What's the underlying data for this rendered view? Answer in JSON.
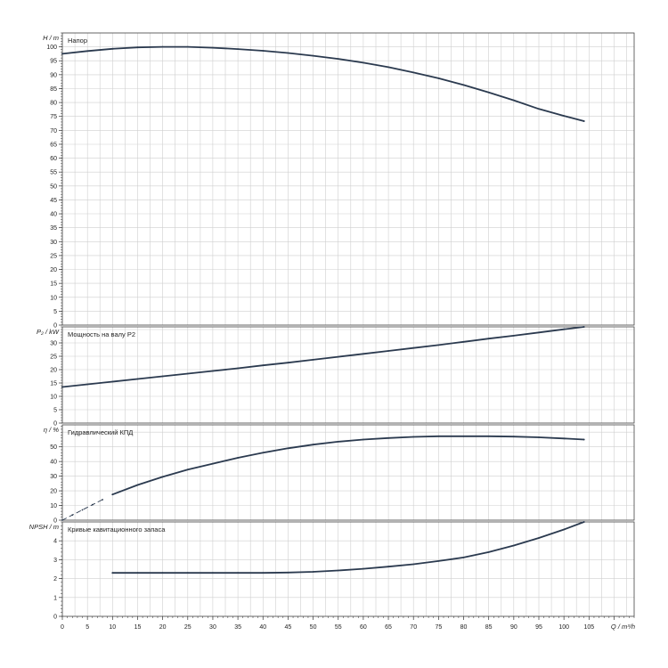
{
  "chart_data": [
    {
      "type": "line",
      "title": "Напор",
      "ylabel": "H / m",
      "xlabel": "Q / m³/h",
      "xlim": [
        0,
        114
      ],
      "ylim": [
        0,
        105
      ],
      "yticks": [
        0,
        5,
        10,
        15,
        20,
        25,
        30,
        35,
        40,
        45,
        50,
        55,
        60,
        65,
        70,
        75,
        80,
        85,
        90,
        95,
        100
      ],
      "grid": true,
      "series": [
        {
          "x": [
            0,
            5,
            10,
            15,
            20,
            25,
            30,
            35,
            40,
            45,
            50,
            55,
            60,
            65,
            70,
            75,
            80,
            85,
            90,
            95,
            100,
            104
          ],
          "y": [
            97.5,
            98.5,
            99.3,
            99.8,
            100,
            100,
            99.7,
            99.2,
            98.6,
            97.8,
            96.8,
            95.7,
            94.3,
            92.7,
            90.8,
            88.7,
            86.3,
            83.6,
            80.8,
            77.7,
            75.2,
            73.3
          ]
        }
      ]
    },
    {
      "type": "line",
      "title": "Мощность на валу P2",
      "ylabel": "P₂ / kW",
      "xlabel": "Q / m³/h",
      "xlim": [
        0,
        114
      ],
      "ylim": [
        0,
        36
      ],
      "yticks": [
        0,
        5,
        10,
        15,
        20,
        25,
        30
      ],
      "grid": true,
      "series": [
        {
          "x": [
            0,
            5,
            10,
            15,
            20,
            25,
            30,
            35,
            40,
            45,
            50,
            55,
            60,
            65,
            70,
            75,
            80,
            85,
            90,
            95,
            100,
            104
          ],
          "y": [
            13.5,
            14.5,
            15.5,
            16.5,
            17.5,
            18.5,
            19.5,
            20.5,
            21.6,
            22.6,
            23.7,
            24.8,
            25.9,
            27.0,
            28.1,
            29.2,
            30.4,
            31.6,
            32.7,
            33.9,
            35.1,
            36.0
          ]
        }
      ]
    },
    {
      "type": "line",
      "title": "Гидравлический КПД",
      "ylabel": "η / %",
      "xlabel": "Q / m³/h",
      "xlim": [
        0,
        114
      ],
      "ylim": [
        0,
        65
      ],
      "yticks": [
        0,
        10,
        20,
        30,
        40,
        50
      ],
      "grid": true,
      "series": [
        {
          "x": [
            0,
            2,
            4,
            6,
            8
          ],
          "y": [
            0,
            3.5,
            7,
            10.5,
            14
          ],
          "dashed": true
        },
        {
          "x": [
            10,
            15,
            20,
            25,
            30,
            35,
            40,
            45,
            50,
            55,
            60,
            65,
            70,
            75,
            80,
            85,
            90,
            95,
            100,
            104
          ],
          "y": [
            17.5,
            24,
            29.5,
            34.5,
            38.5,
            42.5,
            46,
            49,
            51.5,
            53.5,
            55,
            56,
            56.8,
            57.2,
            57.2,
            57.2,
            57,
            56.5,
            55.7,
            55
          ]
        }
      ]
    },
    {
      "type": "line",
      "title": "Кривые кавитационного запаса",
      "ylabel": "NPSH / m",
      "xlabel": "Q / m³/h",
      "xlim": [
        0,
        114
      ],
      "ylim": [
        0,
        5
      ],
      "yticks": [
        0,
        1,
        2,
        3,
        4
      ],
      "xticks": [
        0,
        5,
        10,
        15,
        20,
        25,
        30,
        35,
        40,
        45,
        50,
        55,
        60,
        65,
        70,
        75,
        80,
        85,
        90,
        95,
        100,
        105
      ],
      "grid": true,
      "series": [
        {
          "x": [
            10,
            15,
            20,
            25,
            30,
            35,
            40,
            45,
            50,
            55,
            60,
            65,
            70,
            75,
            80,
            85,
            90,
            95,
            100,
            104
          ],
          "y": [
            2.3,
            2.3,
            2.3,
            2.3,
            2.3,
            2.3,
            2.3,
            2.32,
            2.36,
            2.43,
            2.52,
            2.63,
            2.76,
            2.93,
            3.12,
            3.4,
            3.75,
            4.15,
            4.6,
            5.0
          ]
        }
      ]
    }
  ]
}
